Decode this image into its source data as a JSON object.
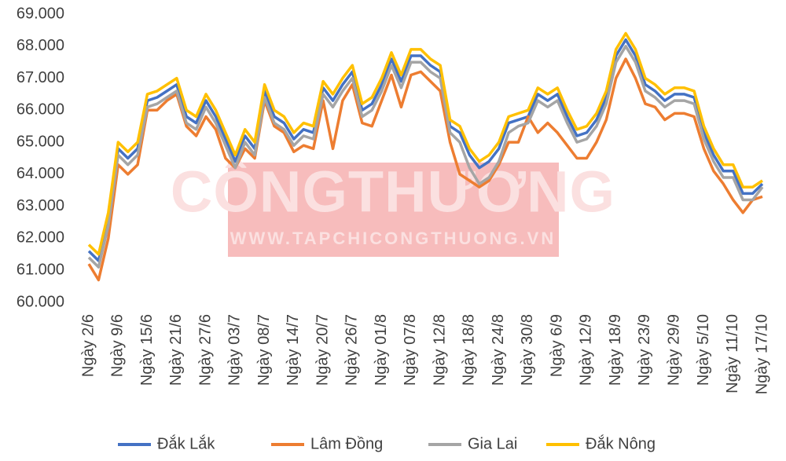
{
  "chart_data": {
    "type": "line",
    "categories": [
      "Ngày 2/6",
      null,
      null,
      "Ngày 9/6",
      null,
      null,
      "Ngày 15/6",
      null,
      null,
      "Ngày 21/6",
      null,
      null,
      "Ngày 27/6",
      null,
      null,
      "Ngày 03/7",
      null,
      null,
      "Ngày 08/7",
      null,
      null,
      "Ngày 14/7",
      null,
      null,
      "Ngày 20/7",
      null,
      null,
      "Ngày 26/7",
      null,
      null,
      "Ngày 01/8",
      null,
      null,
      "Ngày 07/8",
      null,
      null,
      "Ngày 12/8",
      null,
      null,
      "Ngày 18/8",
      null,
      null,
      "Ngày 24/8",
      null,
      null,
      "Ngày 30/8",
      null,
      null,
      "Ngày 6/9",
      null,
      null,
      "Ngày 12/9",
      null,
      null,
      "Ngày 18/9",
      null,
      null,
      "Ngày 23/9",
      null,
      null,
      "Ngày 29/9",
      null,
      null,
      "Ngày 5/10",
      null,
      null,
      "Ngày 11/10",
      null,
      null,
      "Ngày 17/10"
    ],
    "series": [
      {
        "name": "Đắk Lắk",
        "color": "#4472c4",
        "values": [
          61600,
          61300,
          62600,
          64800,
          64500,
          64800,
          66300,
          66400,
          66600,
          66800,
          65800,
          65600,
          66300,
          65800,
          65100,
          64400,
          65200,
          64800,
          66600,
          65800,
          65600,
          65100,
          65400,
          65300,
          66700,
          66300,
          66800,
          67200,
          66000,
          66200,
          66800,
          67600,
          66900,
          67700,
          67700,
          67400,
          67200,
          65500,
          65300,
          64600,
          64200,
          64400,
          64800,
          65600,
          65700,
          65800,
          66500,
          66300,
          66500,
          65800,
          65200,
          65300,
          65700,
          66400,
          67700,
          68200,
          67700,
          66800,
          66600,
          66300,
          66500,
          66500,
          66400,
          65300,
          64600,
          64100,
          64100,
          63400,
          63400,
          63700
        ]
      },
      {
        "name": "Lâm Đồng",
        "color": "#ed7d31",
        "values": [
          61200,
          60700,
          62000,
          64300,
          64000,
          64300,
          66000,
          66000,
          66300,
          66500,
          65500,
          65200,
          65800,
          65400,
          64500,
          64200,
          64800,
          64500,
          66300,
          65500,
          65300,
          64700,
          64900,
          64800,
          66300,
          64800,
          66300,
          66800,
          65600,
          65500,
          66300,
          67100,
          66100,
          67100,
          67200,
          66900,
          66600,
          65000,
          64000,
          63800,
          63600,
          63800,
          64300,
          65000,
          65000,
          65800,
          65300,
          65600,
          65300,
          64900,
          64500,
          64500,
          65000,
          65700,
          67000,
          67600,
          67000,
          66200,
          66100,
          65700,
          65900,
          65900,
          65800,
          64800,
          64100,
          63700,
          63200,
          62800,
          63200,
          63300
        ]
      },
      {
        "name": "Gia Lai",
        "color": "#a5a5a5",
        "values": [
          61400,
          61100,
          62400,
          64600,
          64300,
          64600,
          66100,
          66200,
          66400,
          66600,
          65600,
          65400,
          66100,
          65600,
          64900,
          64200,
          65000,
          64600,
          66400,
          65600,
          65400,
          64900,
          65200,
          65100,
          66500,
          66100,
          66600,
          67000,
          65800,
          66000,
          66600,
          67400,
          66700,
          67500,
          67500,
          67200,
          67000,
          65300,
          65000,
          64200,
          63700,
          63900,
          64400,
          65300,
          65500,
          65600,
          66300,
          66100,
          66300,
          65600,
          65000,
          65100,
          65500,
          66200,
          67500,
          68000,
          67500,
          66600,
          66400,
          66100,
          66300,
          66300,
          66200,
          65100,
          64400,
          63900,
          63900,
          63200,
          63200,
          63600
        ]
      },
      {
        "name": "Đắk Nông",
        "color": "#ffc000",
        "values": [
          61800,
          61500,
          62800,
          65000,
          64700,
          65000,
          66500,
          66600,
          66800,
          67000,
          66000,
          65800,
          66500,
          66000,
          65300,
          64600,
          65400,
          65000,
          66800,
          66000,
          65800,
          65300,
          65600,
          65500,
          66900,
          66500,
          67000,
          67400,
          66200,
          66400,
          67000,
          67800,
          67100,
          67900,
          67900,
          67600,
          67400,
          65700,
          65500,
          64800,
          64400,
          64600,
          65000,
          65800,
          65900,
          66000,
          66700,
          66500,
          66700,
          66000,
          65400,
          65500,
          65900,
          66600,
          67900,
          68400,
          67900,
          67000,
          66800,
          66500,
          66700,
          66700,
          66600,
          65500,
          64800,
          64300,
          64300,
          63600,
          63600,
          63800
        ]
      }
    ],
    "ylim": [
      60000,
      69000
    ],
    "yticks": [
      {
        "value": 60000,
        "label": "60.000"
      },
      {
        "value": 61000,
        "label": "61.000"
      },
      {
        "value": 62000,
        "label": "62.000"
      },
      {
        "value": 63000,
        "label": "63.000"
      },
      {
        "value": 64000,
        "label": "64.000"
      },
      {
        "value": 65000,
        "label": "65.000"
      },
      {
        "value": 66000,
        "label": "66.000"
      },
      {
        "value": 67000,
        "label": "67.000"
      },
      {
        "value": 68000,
        "label": "68.000"
      },
      {
        "value": 69000,
        "label": "69.000"
      }
    ],
    "legend": "bottom"
  },
  "watermark": {
    "title": "CÔNGTHƯƠNG",
    "url": "WWW.TAPCHICONGTHUONG.VN"
  }
}
